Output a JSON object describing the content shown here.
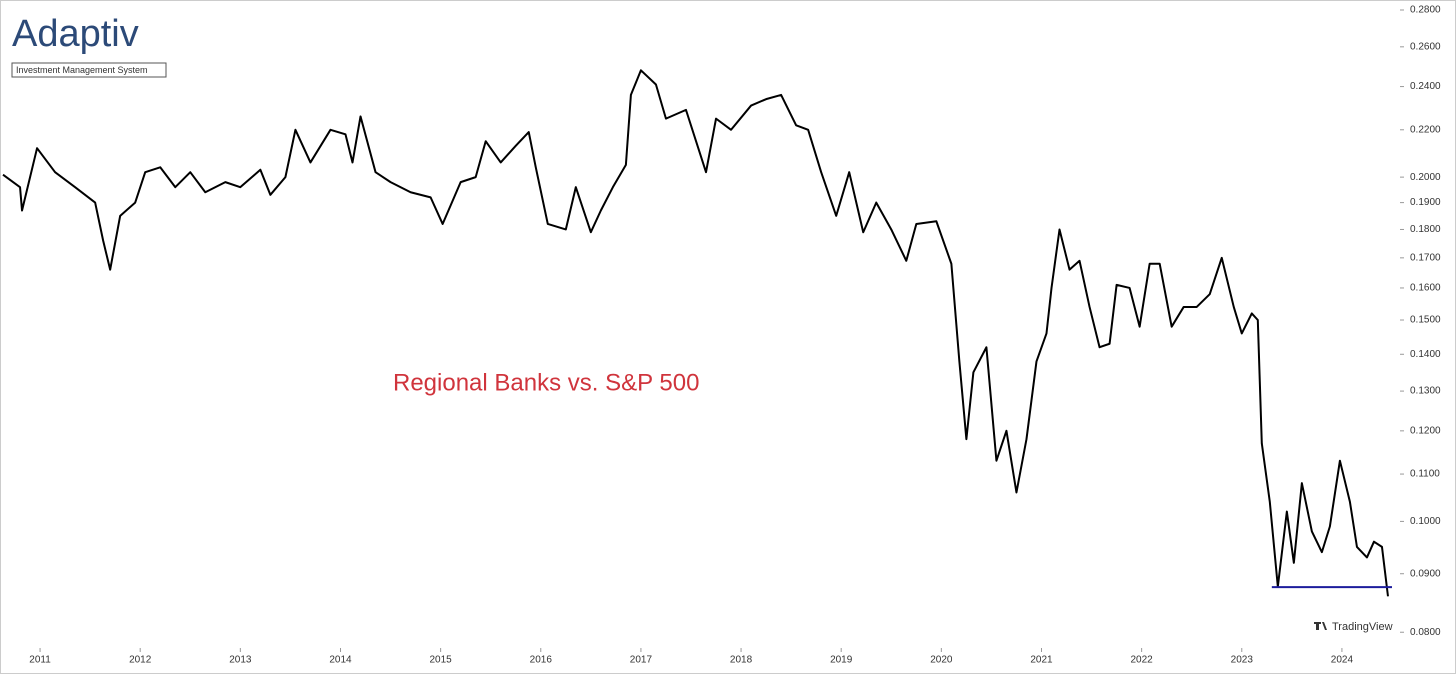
{
  "logo": {
    "name": "Adaptiv",
    "tagline": "Investment Management System"
  },
  "watermark": "TradingView",
  "chart_data": {
    "type": "line",
    "annotation": "Regional Banks vs. S&P 500",
    "log_scale": true,
    "color": "#000000",
    "x": [
      2010.63,
      2010.8,
      2010.82,
      2010.97,
      2011.15,
      2011.35,
      2011.55,
      2011.63,
      2011.7,
      2011.8,
      2011.95,
      2012.05,
      2012.2,
      2012.35,
      2012.5,
      2012.65,
      2012.85,
      2013.0,
      2013.2,
      2013.3,
      2013.45,
      2013.55,
      2013.7,
      2013.9,
      2014.05,
      2014.12,
      2014.2,
      2014.35,
      2014.5,
      2014.7,
      2014.9,
      2015.02,
      2015.2,
      2015.35,
      2015.45,
      2015.6,
      2015.75,
      2015.88,
      2015.95,
      2016.07,
      2016.25,
      2016.35,
      2016.5,
      2016.6,
      2016.72,
      2016.85,
      2016.9,
      2017.0,
      2017.15,
      2017.25,
      2017.45,
      2017.65,
      2017.75,
      2017.9,
      2018.1,
      2018.25,
      2018.4,
      2018.55,
      2018.67,
      2018.8,
      2018.95,
      2019.08,
      2019.22,
      2019.35,
      2019.5,
      2019.65,
      2019.75,
      2019.95,
      2020.1,
      2020.18,
      2020.25,
      2020.32,
      2020.45,
      2020.55,
      2020.65,
      2020.75,
      2020.85,
      2020.95,
      2021.05,
      2021.1,
      2021.18,
      2021.28,
      2021.38,
      2021.48,
      2021.58,
      2021.68,
      2021.75,
      2021.88,
      2021.98,
      2022.08,
      2022.18,
      2022.3,
      2022.42,
      2022.55,
      2022.68,
      2022.8,
      2022.92,
      2023.0,
      2023.1,
      2023.16,
      2023.2,
      2023.28,
      2023.36,
      2023.45,
      2023.52,
      2023.6,
      2023.7,
      2023.8,
      2023.88,
      2023.98,
      2024.08,
      2024.15,
      2024.25,
      2024.32,
      2024.4,
      2024.46
    ],
    "values": [
      0.201,
      0.196,
      0.187,
      0.212,
      0.202,
      0.196,
      0.19,
      0.176,
      0.166,
      0.185,
      0.19,
      0.202,
      0.204,
      0.196,
      0.202,
      0.194,
      0.198,
      0.196,
      0.203,
      0.193,
      0.2,
      0.22,
      0.206,
      0.22,
      0.218,
      0.206,
      0.226,
      0.202,
      0.198,
      0.194,
      0.192,
      0.182,
      0.198,
      0.2,
      0.215,
      0.206,
      0.213,
      0.219,
      0.204,
      0.182,
      0.18,
      0.196,
      0.179,
      0.187,
      0.196,
      0.205,
      0.236,
      0.248,
      0.241,
      0.225,
      0.229,
      0.202,
      0.225,
      0.22,
      0.231,
      0.234,
      0.236,
      0.222,
      0.22,
      0.202,
      0.185,
      0.202,
      0.179,
      0.19,
      0.18,
      0.169,
      0.182,
      0.183,
      0.168,
      0.138,
      0.118,
      0.135,
      0.142,
      0.113,
      0.12,
      0.106,
      0.118,
      0.138,
      0.146,
      0.16,
      0.18,
      0.166,
      0.169,
      0.154,
      0.142,
      0.143,
      0.161,
      0.16,
      0.148,
      0.168,
      0.168,
      0.148,
      0.154,
      0.154,
      0.158,
      0.17,
      0.154,
      0.146,
      0.152,
      0.15,
      0.117,
      0.104,
      0.0877,
      0.102,
      0.092,
      0.108,
      0.098,
      0.094,
      0.099,
      0.113,
      0.104,
      0.095,
      0.093,
      0.096,
      0.095,
      0.086
    ],
    "support": {
      "value": 0.0876,
      "x": [
        2023.3,
        2024.5
      ],
      "color": "#1c1c9c"
    },
    "xlim": [
      2010.6,
      2024.58
    ],
    "xticks": [
      2011,
      2012,
      2013,
      2014,
      2015,
      2016,
      2017,
      2018,
      2019,
      2020,
      2021,
      2022,
      2023,
      2024
    ],
    "ylim": [
      0.0775,
      0.2857
    ],
    "yticks": [
      {
        "value": 0.28,
        "label": "0.2800"
      },
      {
        "value": 0.26,
        "label": "0.2600"
      },
      {
        "value": 0.24,
        "label": "0.2400"
      },
      {
        "value": 0.22,
        "label": "0.2200"
      },
      {
        "value": 0.2,
        "label": "0.2000"
      },
      {
        "value": 0.19,
        "label": "0.1900"
      },
      {
        "value": 0.18,
        "label": "0.1800"
      },
      {
        "value": 0.17,
        "label": "0.1700"
      },
      {
        "value": 0.16,
        "label": "0.1600"
      },
      {
        "value": 0.15,
        "label": "0.1500"
      },
      {
        "value": 0.14,
        "label": "0.1400"
      },
      {
        "value": 0.13,
        "label": "0.1300"
      },
      {
        "value": 0.12,
        "label": "0.1200"
      },
      {
        "value": 0.11,
        "label": "0.1100"
      },
      {
        "value": 0.1,
        "label": "0.1000"
      },
      {
        "value": 0.09,
        "label": "0.0900"
      },
      {
        "value": 0.08,
        "label": "0.0800"
      }
    ]
  }
}
